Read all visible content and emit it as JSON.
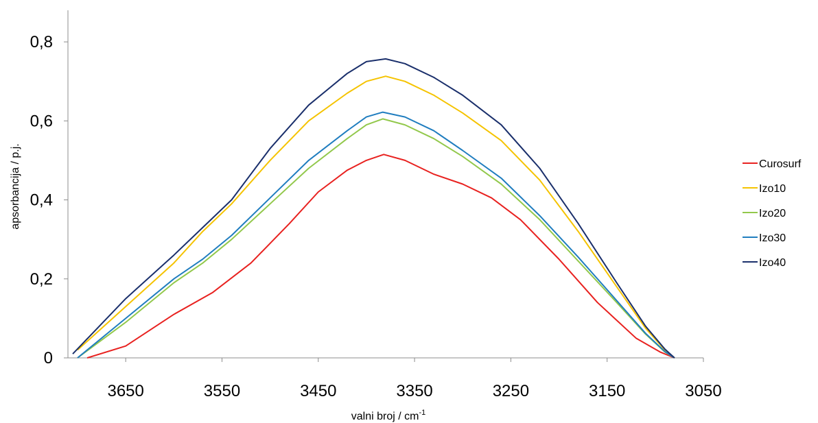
{
  "chart_data": {
    "type": "line",
    "title": "",
    "xlabel": "valni broj / cm",
    "xlabel_sup": "-1",
    "ylabel": "apsorbancija / p.j.",
    "x_reversed": true,
    "xlim": [
      3710,
      3050
    ],
    "ylim": [
      0,
      0.88
    ],
    "x_ticks": [
      3650,
      3550,
      3450,
      3350,
      3250,
      3150,
      3050
    ],
    "x_tick_labels": [
      "3650",
      "3550",
      "3450",
      "3350",
      "3250",
      "3150",
      "3050"
    ],
    "y_ticks": [
      0,
      0.2,
      0.4,
      0.6,
      0.8
    ],
    "y_tick_labels": [
      "0",
      "0,2",
      "0,4",
      "0,6",
      "0,8"
    ],
    "grid": false,
    "legend_position": "right",
    "series": [
      {
        "name": "Curosurf",
        "color": "#e8211f",
        "x": [
          3690,
          3650,
          3600,
          3560,
          3520,
          3480,
          3450,
          3420,
          3400,
          3382,
          3360,
          3330,
          3300,
          3270,
          3240,
          3200,
          3160,
          3120,
          3095,
          3080
        ],
        "y": [
          0,
          0.03,
          0.11,
          0.165,
          0.24,
          0.34,
          0.42,
          0.475,
          0.5,
          0.515,
          0.5,
          0.465,
          0.44,
          0.405,
          0.35,
          0.25,
          0.14,
          0.05,
          0.015,
          0
        ]
      },
      {
        "name": "Izo10",
        "color": "#f5c300",
        "x": [
          3700,
          3650,
          3600,
          3570,
          3540,
          3500,
          3460,
          3420,
          3400,
          3380,
          3360,
          3330,
          3300,
          3260,
          3220,
          3180,
          3140,
          3110,
          3090,
          3080
        ],
        "y": [
          0.02,
          0.13,
          0.24,
          0.32,
          0.39,
          0.5,
          0.6,
          0.67,
          0.7,
          0.713,
          0.7,
          0.665,
          0.62,
          0.55,
          0.45,
          0.32,
          0.18,
          0.075,
          0.02,
          0
        ]
      },
      {
        "name": "Izo20",
        "color": "#92c84b",
        "x": [
          3700,
          3650,
          3600,
          3570,
          3540,
          3500,
          3460,
          3420,
          3400,
          3383,
          3360,
          3330,
          3300,
          3260,
          3220,
          3180,
          3140,
          3110,
          3090,
          3080
        ],
        "y": [
          0,
          0.09,
          0.19,
          0.24,
          0.3,
          0.39,
          0.48,
          0.555,
          0.59,
          0.605,
          0.59,
          0.555,
          0.51,
          0.44,
          0.35,
          0.245,
          0.14,
          0.06,
          0.015,
          0
        ]
      },
      {
        "name": "Izo30",
        "color": "#1f7dbf",
        "x": [
          3700,
          3650,
          3600,
          3570,
          3540,
          3500,
          3460,
          3420,
          3400,
          3383,
          3360,
          3330,
          3300,
          3260,
          3220,
          3180,
          3140,
          3110,
          3090,
          3080
        ],
        "y": [
          0,
          0.1,
          0.2,
          0.25,
          0.31,
          0.405,
          0.5,
          0.575,
          0.61,
          0.622,
          0.61,
          0.575,
          0.525,
          0.455,
          0.36,
          0.255,
          0.145,
          0.062,
          0.016,
          0
        ]
      },
      {
        "name": "Izo40",
        "color": "#1a2f6b",
        "x": [
          3705,
          3650,
          3600,
          3570,
          3540,
          3500,
          3460,
          3420,
          3400,
          3380,
          3360,
          3330,
          3300,
          3260,
          3220,
          3180,
          3140,
          3110,
          3090,
          3080
        ],
        "y": [
          0.01,
          0.15,
          0.26,
          0.33,
          0.4,
          0.53,
          0.64,
          0.72,
          0.75,
          0.757,
          0.745,
          0.71,
          0.665,
          0.59,
          0.48,
          0.34,
          0.19,
          0.08,
          0.022,
          0
        ]
      }
    ]
  }
}
